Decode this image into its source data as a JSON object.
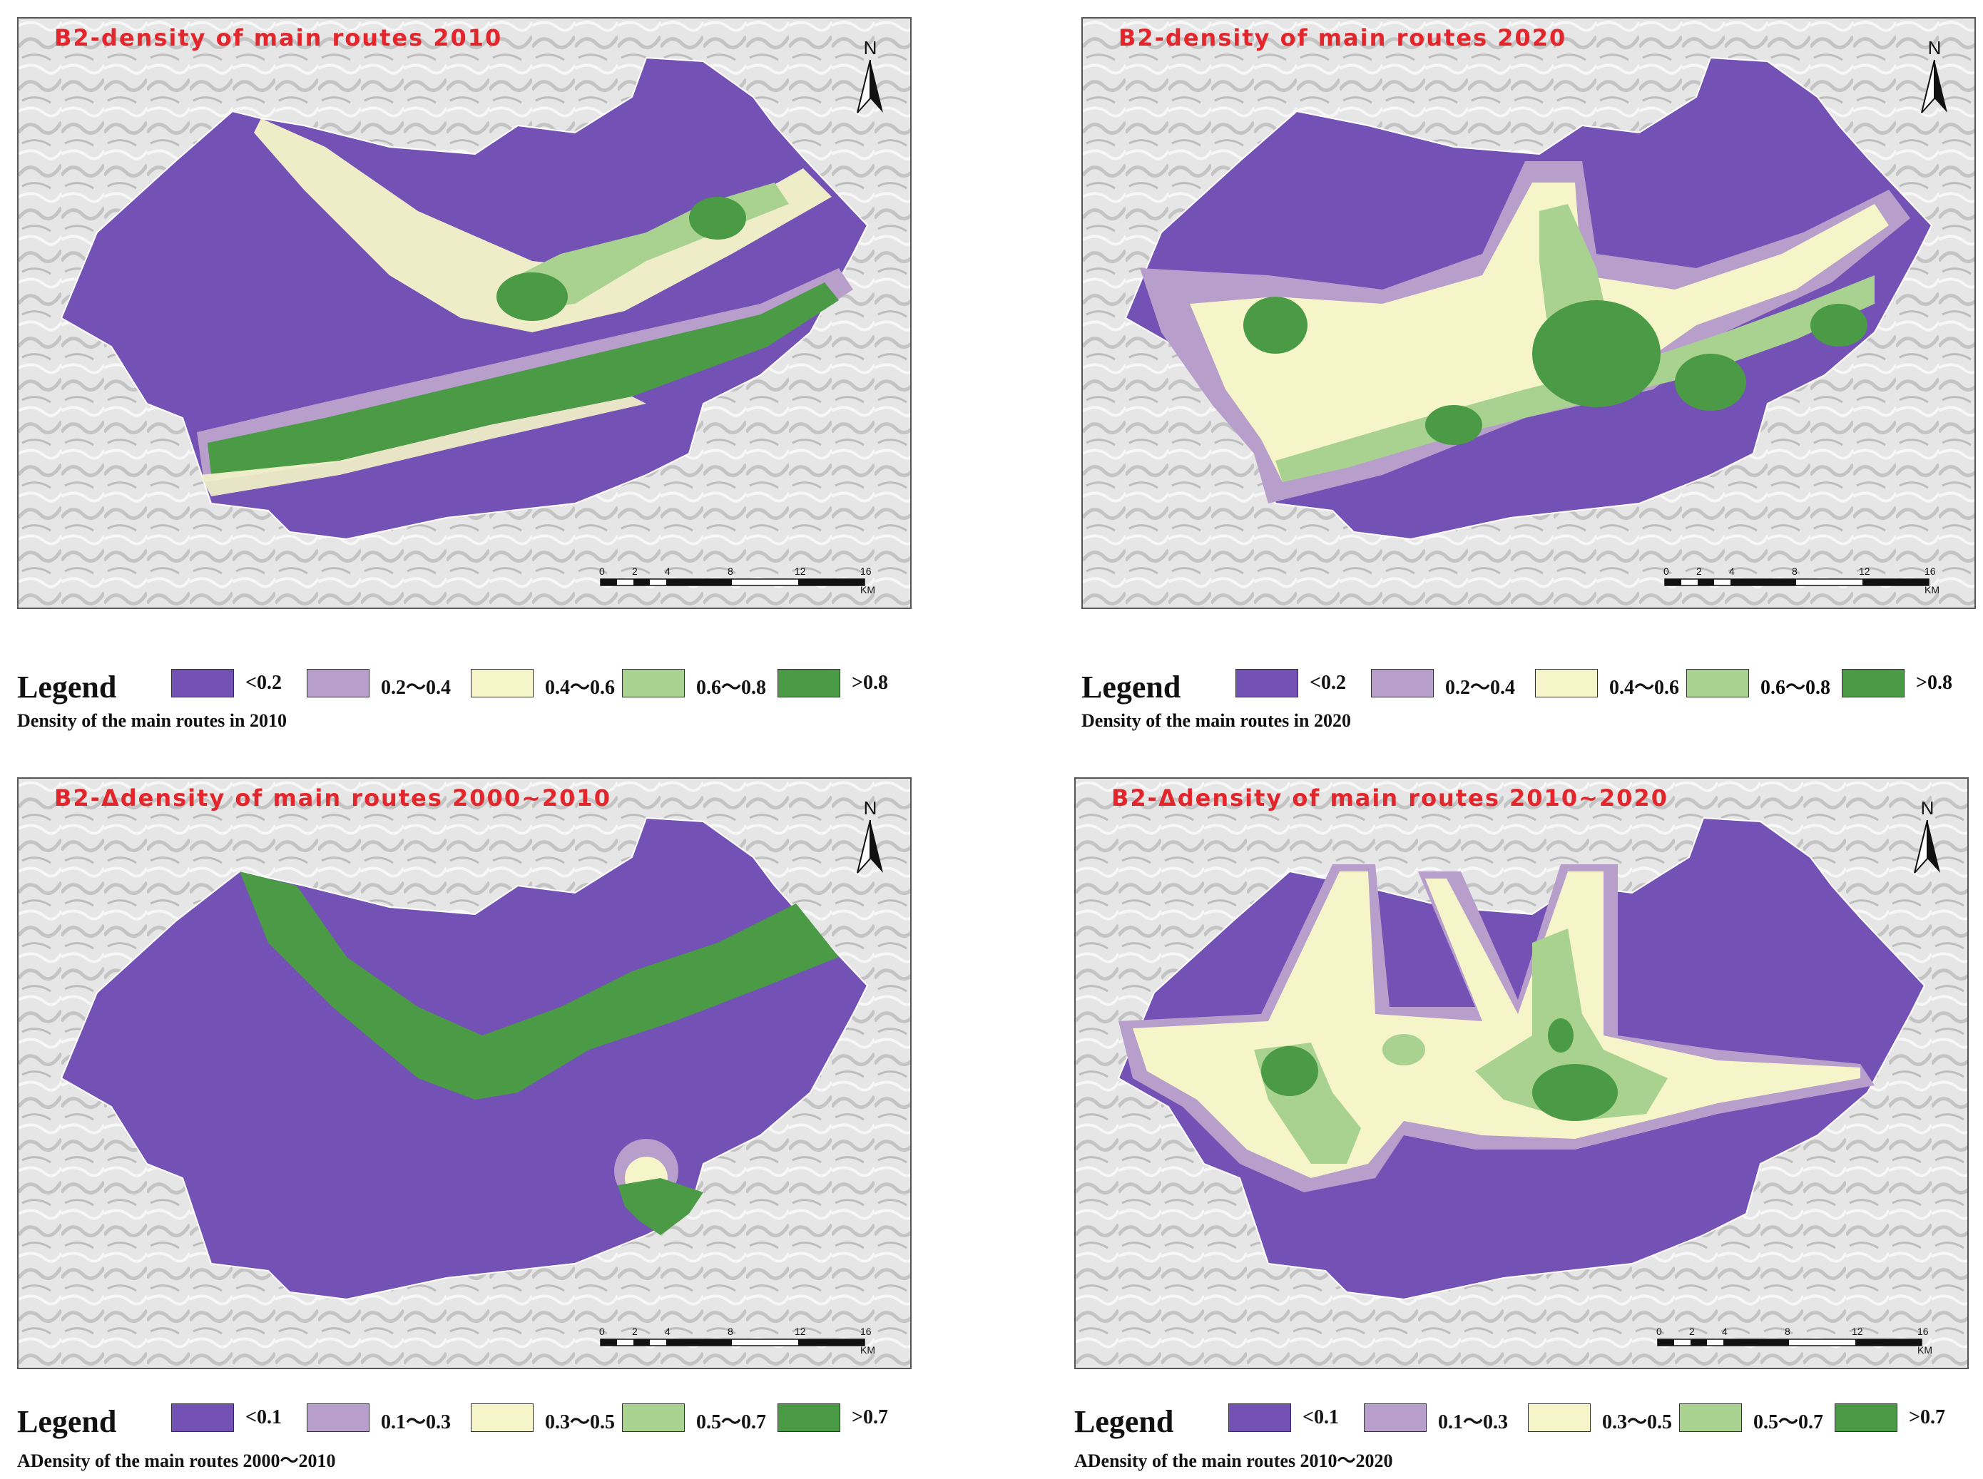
{
  "colors": {
    "lt01": "#7451b5",
    "c02": "#b89fcb",
    "c03": "#f5f5c9",
    "c04": "#a9d290",
    "gt08": "#4a9a46",
    "title_red": "#e3262b"
  },
  "panels": [
    {
      "title": "B2-density of main routes 2010",
      "north_label": "N",
      "scale": {
        "ticks": [
          "0",
          "2",
          "4",
          "8",
          "12",
          "16"
        ],
        "unit": "KM"
      },
      "legend_title": "Legend",
      "legend_items": [
        "<0.2",
        "0.2～0.4",
        "0.4～0.6",
        "0.6～0.8",
        ">0.8"
      ],
      "legend_subtitle": "Density of the main routes  in  2010"
    },
    {
      "title": "B2-density of main routes 2020",
      "north_label": "N",
      "scale": {
        "ticks": [
          "0",
          "2",
          "4",
          "8",
          "12",
          "16"
        ],
        "unit": "KM"
      },
      "legend_title": "Legend",
      "legend_items": [
        "<0.2",
        "0.2～0.4",
        "0.4～0.6",
        "0.6～0.8",
        ">0.8"
      ],
      "legend_subtitle": "Density of the main routes  in  2020"
    },
    {
      "title": "B2-Δdensity of main routes 2000~2010",
      "north_label": "N",
      "scale": {
        "ticks": [
          "0",
          "2",
          "4",
          "8",
          "12",
          "16"
        ],
        "unit": "KM"
      },
      "legend_title": "Legend",
      "legend_items": [
        "<0.1",
        "0.1～0.3",
        "0.3～0.5",
        "0.5～0.7",
        ">0.7"
      ],
      "legend_subtitle": "ADensity of the main routes  2000～2010"
    },
    {
      "title": "B2-Δdensity of main routes 2010~2020",
      "north_label": "N",
      "scale": {
        "ticks": [
          "0",
          "2",
          "4",
          "8",
          "12",
          "16"
        ],
        "unit": "KM"
      },
      "legend_title": "Legend",
      "legend_items": [
        "<0.1",
        "0.1～0.3",
        "0.3～0.5",
        "0.5～0.7",
        ">0.7"
      ],
      "legend_subtitle": "ADensity of the main routes  2010～2020"
    }
  ]
}
